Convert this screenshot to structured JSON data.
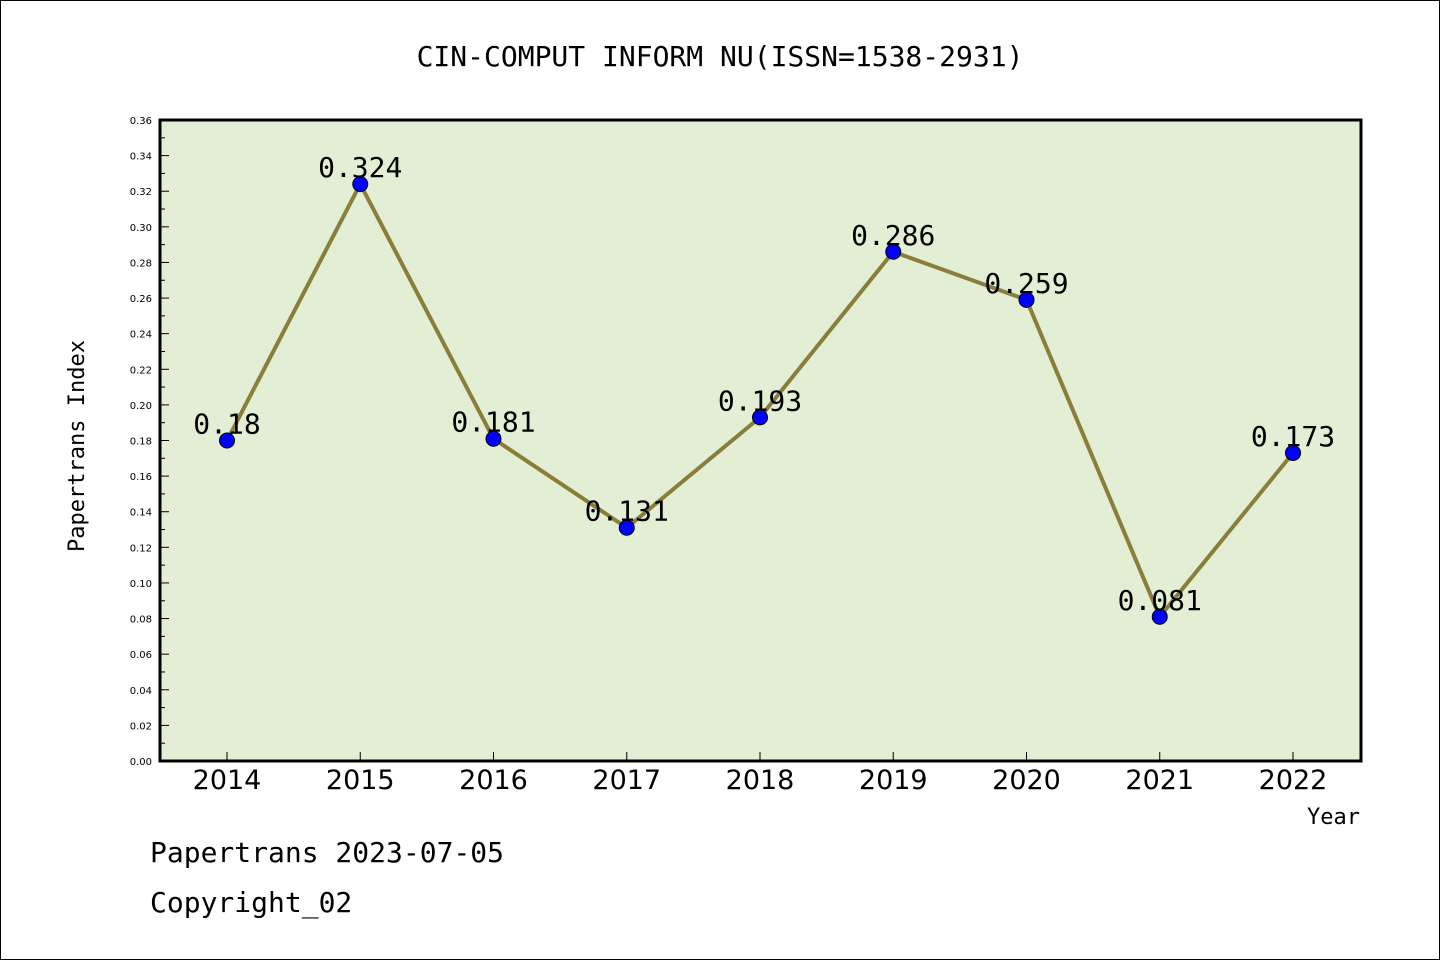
{
  "chart_data": {
    "type": "line",
    "title": "CIN-COMPUT INFORM NU(ISSN=1538-2931)",
    "xlabel": "Year",
    "ylabel": "Papertrans Index",
    "categories": [
      "2014",
      "2015",
      "2016",
      "2017",
      "2018",
      "2019",
      "2020",
      "2021",
      "2022"
    ],
    "series": [
      {
        "values": [
          0.18,
          0.324,
          0.181,
          0.131,
          0.193,
          0.286,
          0.259,
          0.081,
          0.173
        ],
        "labels": [
          "0.18",
          "0.324",
          "0.181",
          "0.131",
          "0.193",
          "0.286",
          "0.259",
          "0.081",
          "0.173"
        ]
      }
    ],
    "ylim": [
      0,
      0.36
    ],
    "yticks": [
      "0.00",
      "0.02",
      "0.04",
      "0.06",
      "0.08",
      "0.10",
      "0.12",
      "0.14",
      "0.16",
      "0.18",
      "0.20",
      "0.22",
      "0.24",
      "0.26",
      "0.28",
      "0.30",
      "0.32",
      "0.34",
      "0.36"
    ],
    "grid": false,
    "colors": {
      "plot_background": "#e2efd5",
      "line": "#8b7d3a",
      "marker": "#0000ff"
    }
  },
  "footer": {
    "line1": "Papertrans 2023-07-05",
    "line2": "Copyright_02"
  }
}
